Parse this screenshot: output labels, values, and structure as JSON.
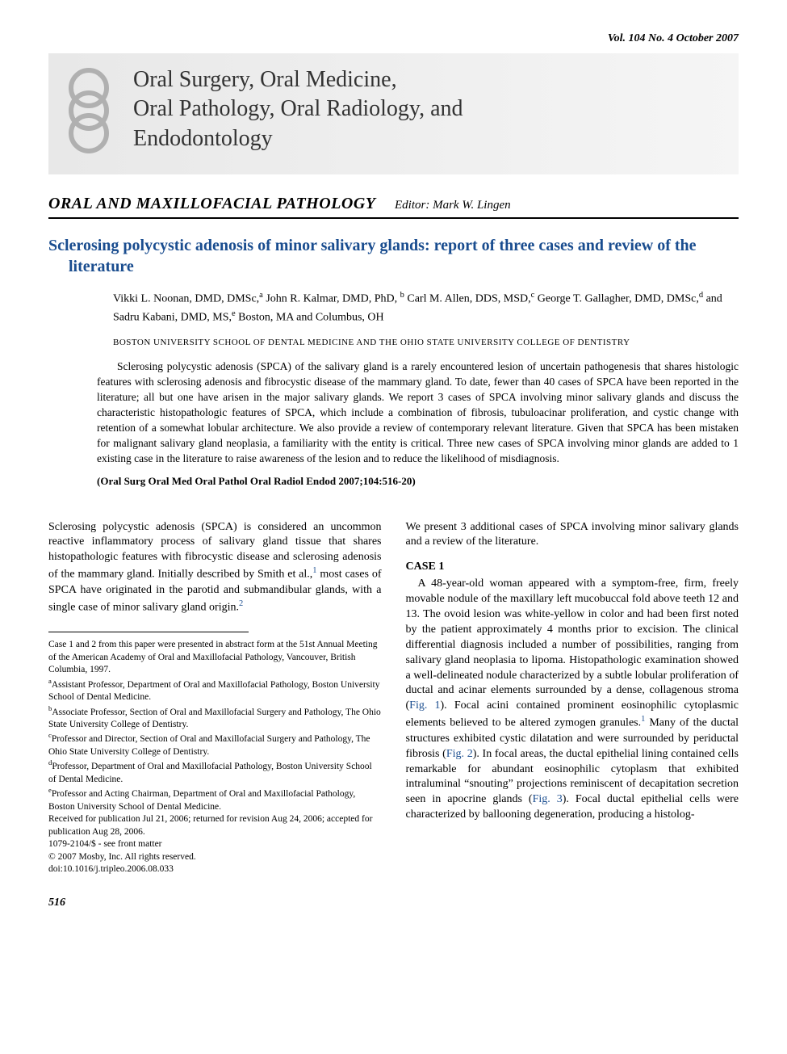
{
  "header": {
    "issue_line": "Vol. 104   No. 4   October 2007"
  },
  "journal": {
    "title_line1": "Oral Surgery, Oral Medicine,",
    "title_line2": "Oral Pathology, Oral Radiology, and",
    "title_line3": "Endodontology",
    "logo_color": "#c0c0c0",
    "banner_bg_start": "#e8e8e8",
    "banner_bg_end": "#f5f5f5"
  },
  "section": {
    "name": "ORAL AND MAXILLOFACIAL PATHOLOGY",
    "editor_label": "Editor: Mark W. Lingen"
  },
  "article": {
    "title": "Sclerosing polycystic adenosis of minor salivary glands: report of three cases and review of the literature",
    "title_color": "#1a4d8f",
    "authors_html": "Vikki L. Noonan, DMD, DMSc,<sup>a</sup> John R. Kalmar, DMD, PhD, <sup>b</sup> Carl M. Allen, DDS, MSD,<sup>c</sup> George T. Gallagher, DMD, DMSc,<sup>d</sup> and Sadru Kabani, DMD, MS,<sup>e</sup> Boston, MA and Columbus, OH",
    "affiliation": "BOSTON UNIVERSITY SCHOOL OF DENTAL MEDICINE AND THE OHIO STATE UNIVERSITY COLLEGE OF DENTISTRY"
  },
  "abstract": {
    "text": "Sclerosing polycystic adenosis (SPCA) of the salivary gland is a rarely encountered lesion of uncertain pathogenesis that shares histologic features with sclerosing adenosis and fibrocystic disease of the mammary gland. To date, fewer than 40 cases of SPCA have been reported in the literature; all but one have arisen in the major salivary glands. We report 3 cases of SPCA involving minor salivary glands and discuss the characteristic histopathologic features of SPCA, which include a combination of fibrosis, tubuloacinar proliferation, and cystic change with retention of a somewhat lobular architecture. We also provide a review of contemporary relevant literature. Given that SPCA has been mistaken for malignant salivary gland neoplasia, a familiarity with the entity is critical. Three new cases of SPCA involving minor glands are added to 1 existing case in the literature to raise awareness of the lesion and to reduce the likelihood of misdiagnosis.",
    "citation": "(Oral Surg Oral Med Oral Pathol Oral Radiol Endod 2007;104:516-20)"
  },
  "body": {
    "intro": "Sclerosing polycystic adenosis (SPCA) is considered an uncommon reactive inflammatory process of salivary gland tissue that shares histopathologic features with fibrocystic disease and sclerosing adenosis of the mammary gland. Initially described by Smith et al.,",
    "intro_ref1": "1",
    "intro_cont": " most cases of SPCA have originated in the parotid and submandibular glands, with a single case of minor salivary gland origin.",
    "intro_ref2": "2",
    "col2_lead": "We present 3 additional cases of SPCA involving minor salivary glands and a review of the literature.",
    "case1_heading": "CASE 1",
    "case1_body_pre": "A 48-year-old woman appeared with a symptom-free, firm, freely movable nodule of the maxillary left mucobuccal fold above teeth 12 and 13. The ovoid lesion was white-yellow in color and had been first noted by the patient approximately 4 months prior to excision. The clinical differential diagnosis included a number of possibilities, ranging from salivary gland neoplasia to lipoma. Histopathologic examination showed a well-delineated nodule characterized by a subtle lobular proliferation of ductal and acinar elements surrounded by a dense, collagenous stroma (",
    "fig1": "Fig. 1",
    "case1_body_mid1": "). Focal acini contained prominent eosinophilic cytoplasmic elements believed to be altered zymogen granules.",
    "case1_ref1": "1",
    "case1_body_mid2": " Many of the ductal structures exhibited cystic dilatation and were surrounded by periductal fibrosis (",
    "fig2": "Fig. 2",
    "case1_body_mid3": "). In focal areas, the ductal epithelial lining contained cells remarkable for abundant eosinophilic cytoplasm that exhibited intraluminal “snouting” projections reminiscent of decapitation secretion seen in apocrine glands (",
    "fig3": "Fig. 3",
    "case1_body_end": "). Focal ductal epithelial cells were characterized by ballooning degeneration, producing a histolog-"
  },
  "footnotes": {
    "note_presentation": "Case 1 and 2 from this paper were presented in abstract form at the 51st Annual Meeting of the American Academy of Oral and Maxillofacial Pathology, Vancouver, British Columbia, 1997.",
    "note_a": "Assistant Professor, Department of Oral and Maxillofacial Pathology, Boston University School of Dental Medicine.",
    "note_b": "Associate Professor, Section of Oral and Maxillofacial Surgery and Pathology, The Ohio State University College of Dentistry.",
    "note_c": "Professor and Director, Section of Oral and Maxillofacial Surgery and Pathology, The Ohio State University College of Dentistry.",
    "note_d": "Professor, Department of Oral and Maxillofacial Pathology, Boston University School of Dental Medicine.",
    "note_e": "Professor and Acting Chairman, Department of Oral and Maxillofacial Pathology, Boston University School of Dental Medicine.",
    "received": "Received for publication Jul 21, 2006; returned for revision Aug 24, 2006; accepted for publication Aug 28, 2006.",
    "issn": "1079-2104/$ - see front matter",
    "copyright": "© 2007 Mosby, Inc. All rights reserved.",
    "doi": "doi:10.1016/j.tripleo.2006.08.033"
  },
  "page_number": "516",
  "colors": {
    "text": "#000000",
    "link": "#1a4d8f",
    "background": "#ffffff"
  }
}
